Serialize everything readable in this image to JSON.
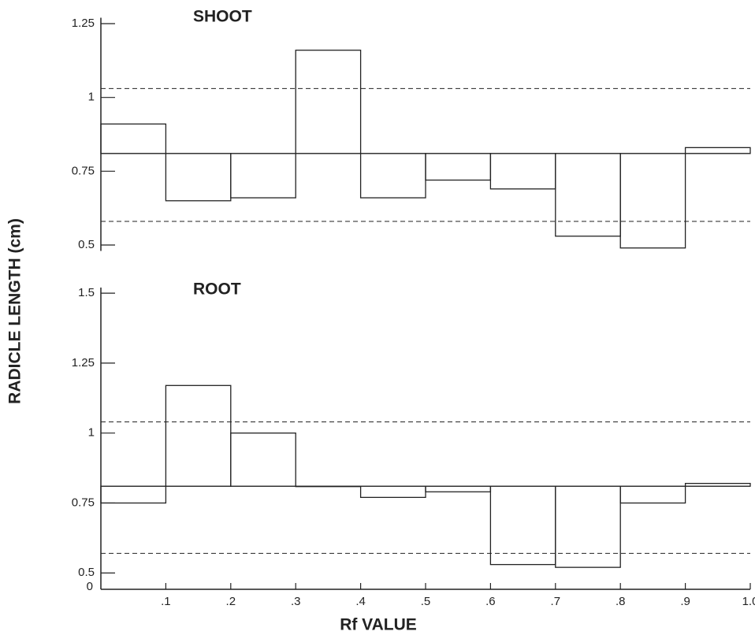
{
  "chart_data": [
    {
      "type": "histogram",
      "title": "SHOOT",
      "ylabel": "RADICLE LENGTH (cm)",
      "bins": [
        0,
        0.1,
        0.2,
        0.3,
        0.4,
        0.5,
        0.6,
        0.7,
        0.8,
        0.9,
        1
      ],
      "values": [
        0.91,
        0.65,
        0.66,
        1.16,
        0.66,
        0.72,
        0.69,
        0.53,
        0.49,
        0.83
      ],
      "baseline": 0.81,
      "dashed_lines": [
        0.58,
        1.03
      ],
      "xlim": [
        0,
        1
      ],
      "ylim": [
        0.48,
        1.27
      ],
      "yticks": [
        0.5,
        0.75,
        1,
        1.25
      ],
      "color": "#222"
    },
    {
      "type": "histogram",
      "title": "ROOT",
      "xlabel": "Rf VALUE",
      "y_origin_label": "0",
      "bins": [
        0,
        0.1,
        0.2,
        0.3,
        0.4,
        0.5,
        0.6,
        0.7,
        0.8,
        0.9,
        1
      ],
      "values": [
        0.75,
        1.17,
        1.0,
        0.81,
        0.77,
        0.79,
        0.53,
        0.52,
        0.75,
        0.82
      ],
      "baseline": 0.81,
      "dashed_lines": [
        0.57,
        1.04
      ],
      "xlim": [
        0,
        1
      ],
      "ylim": [
        0.45,
        1.52
      ],
      "yticks": [
        0.5,
        0.75,
        1,
        1.25,
        1.5
      ],
      "xticks": [
        {
          "value": 0.1,
          "label": ".1"
        },
        {
          "value": 0.2,
          "label": ".2"
        },
        {
          "value": 0.3,
          "label": ".3"
        },
        {
          "value": 0.4,
          "label": ".4"
        },
        {
          "value": 0.5,
          "label": ".5"
        },
        {
          "value": 0.6,
          "label": ".6"
        },
        {
          "value": 0.7,
          "label": ".7"
        },
        {
          "value": 0.8,
          "label": ".8"
        },
        {
          "value": 0.9,
          "label": ".9"
        },
        {
          "value": 1,
          "label": "1.0"
        }
      ],
      "color": "#222"
    }
  ]
}
